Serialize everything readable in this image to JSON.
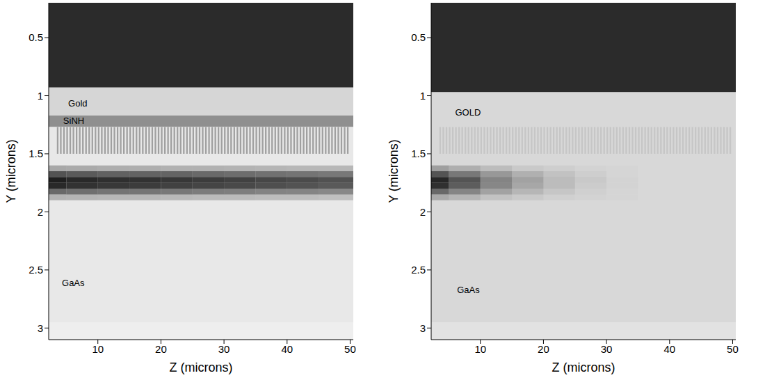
{
  "chart_data": [
    {
      "type": "heatmap",
      "x_label": "Z (microns)",
      "y_label": "Y (microns)",
      "xlim": [
        2.2,
        50.5
      ],
      "ylim": [
        0.2,
        3.1
      ],
      "xticks": [
        10,
        20,
        30,
        40,
        50
      ],
      "yticks": [
        0.5,
        1,
        1.5,
        2,
        2.5,
        3
      ],
      "regions": [
        {
          "ylim": [
            0.2,
            0.93
          ],
          "color": "#2b2b2b"
        },
        {
          "ylim": [
            0.93,
            1.17
          ],
          "color": "#d6d6d6"
        },
        {
          "ylim": [
            1.17,
            1.27
          ],
          "color": "#8f8f8f"
        },
        {
          "ylim": [
            1.27,
            2.95
          ],
          "color": "#e8e8e8"
        },
        {
          "ylim": [
            2.95,
            3.1
          ],
          "color": "#eeeeee"
        }
      ],
      "grating": {
        "xlim": [
          3.5,
          50
        ],
        "ylim": [
          1.27,
          1.5
        ],
        "period": 0.5,
        "color": "#a0a0a0"
      },
      "cells": {
        "x": [
          2.2,
          5,
          10,
          15,
          20,
          25,
          30,
          35,
          40,
          45,
          50.5
        ],
        "y": [
          1.6,
          1.65,
          1.7,
          1.75,
          1.8,
          1.85,
          1.9
        ],
        "color": "#141414",
        "values": [
          [
            0.3,
            0.29,
            0.28,
            0.27,
            0.26,
            0.26,
            0.25,
            0.24,
            0.23,
            0.23
          ],
          [
            0.7,
            0.67,
            0.64,
            0.63,
            0.62,
            0.6,
            0.58,
            0.56,
            0.55,
            0.53
          ],
          [
            0.95,
            0.9,
            0.87,
            0.86,
            0.84,
            0.81,
            0.79,
            0.76,
            0.74,
            0.71
          ],
          [
            0.9,
            0.86,
            0.83,
            0.81,
            0.79,
            0.77,
            0.75,
            0.72,
            0.7,
            0.68
          ],
          [
            0.6,
            0.57,
            0.55,
            0.54,
            0.53,
            0.51,
            0.5,
            0.48,
            0.47,
            0.45
          ],
          [
            0.25,
            0.24,
            0.23,
            0.23,
            0.22,
            0.21,
            0.21,
            0.2,
            0.2,
            0.19
          ]
        ]
      },
      "annotations": [
        {
          "text": "Gold",
          "x": 5.3,
          "y": 1.07
        },
        {
          "text": "SiNH",
          "x": 4.5,
          "y": 1.22
        },
        {
          "text": "GaAs",
          "x": 4.3,
          "y": 2.62
        }
      ]
    },
    {
      "type": "heatmap",
      "x_label": "Z (microns)",
      "y_label": "Y (microns)",
      "xlim": [
        2.2,
        50.5
      ],
      "ylim": [
        0.2,
        3.1
      ],
      "xticks": [
        10,
        20,
        30,
        40,
        50
      ],
      "yticks": [
        0.5,
        1,
        1.5,
        2,
        2.5,
        3
      ],
      "regions": [
        {
          "ylim": [
            0.2,
            0.97
          ],
          "color": "#2b2b2b"
        },
        {
          "ylim": [
            0.97,
            2.95
          ],
          "color": "#d8d8d8"
        },
        {
          "ylim": [
            2.95,
            3.1
          ],
          "color": "#e2e2e2"
        }
      ],
      "grating": {
        "xlim": [
          3.5,
          50
        ],
        "ylim": [
          1.27,
          1.5
        ],
        "period": 0.5,
        "color": "#c6c6c6"
      },
      "cells": {
        "x": [
          2.2,
          5,
          10,
          15,
          20,
          25,
          30,
          35,
          40,
          45,
          50.5
        ],
        "y": [
          1.6,
          1.65,
          1.7,
          1.75,
          1.8,
          1.85,
          1.9
        ],
        "color": "#141414",
        "values": [
          [
            0.29,
            0.21,
            0.14,
            0.08,
            0.05,
            0.02,
            0.01,
            0,
            0,
            0
          ],
          [
            0.67,
            0.49,
            0.32,
            0.2,
            0.11,
            0.05,
            0.01,
            0,
            0,
            0
          ],
          [
            0.9,
            0.67,
            0.43,
            0.27,
            0.14,
            0.07,
            0.02,
            0,
            0,
            0
          ],
          [
            0.86,
            0.63,
            0.41,
            0.25,
            0.14,
            0.06,
            0.02,
            0,
            0,
            0
          ],
          [
            0.57,
            0.42,
            0.27,
            0.17,
            0.09,
            0.04,
            0.01,
            0,
            0,
            0
          ],
          [
            0.24,
            0.18,
            0.11,
            0.07,
            0.04,
            0.02,
            0.01,
            0,
            0,
            0
          ]
        ]
      },
      "annotations": [
        {
          "text": "GOLD",
          "x": 6,
          "y": 1.15
        },
        {
          "text": "GaAs",
          "x": 6.3,
          "y": 2.68
        }
      ]
    }
  ]
}
